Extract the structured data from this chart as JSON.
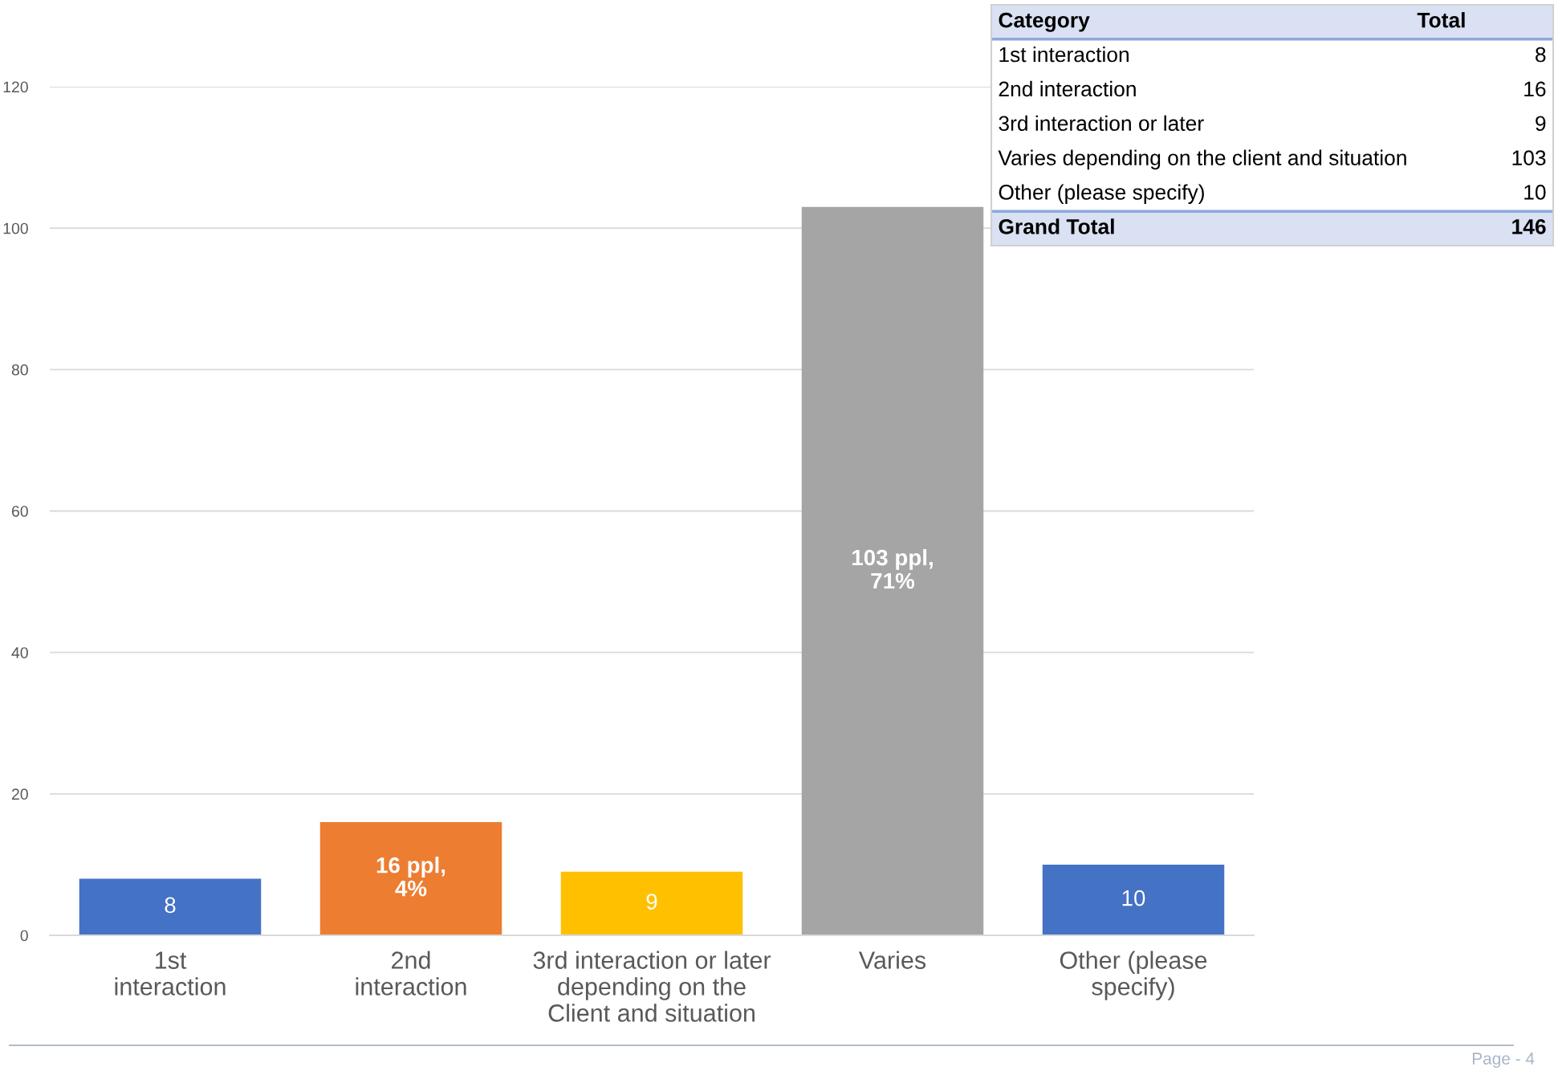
{
  "chart_data": [
    {
      "type": "bar",
      "categories": [
        "1st\ninteraction",
        "2nd\ninteraction",
        "3rd interaction or later\ndepending on the\nClient and situation",
        "Varies",
        "Other (please\nspecify)"
      ],
      "values": [
        8,
        16,
        9,
        103,
        10
      ],
      "colors": [
        "#4472c4",
        "#ed7d31",
        "#ffc000",
        "#a5a5a5",
        "#4472c4"
      ],
      "value_labels": [
        "8",
        "16 ppl,\n4%",
        "9",
        "103 ppl,\n71%",
        "10"
      ],
      "ylim": [
        0,
        120
      ],
      "yticks": [
        0,
        20,
        40,
        60,
        80,
        100,
        120
      ],
      "grid": "y",
      "annotations": [
        "Page - 4"
      ]
    },
    {
      "type": "other",
      "annotations": [
        "Category",
        "Total"
      ],
      "categories": [
        "1st interaction",
        "2nd interaction",
        "3rd interaction or later",
        "Varies depending on the client and situation",
        "Other (please specify)",
        "Grand Total"
      ],
      "values": [
        8,
        16,
        9,
        103,
        10,
        146
      ],
      "data_labels": true
    }
  ]
}
